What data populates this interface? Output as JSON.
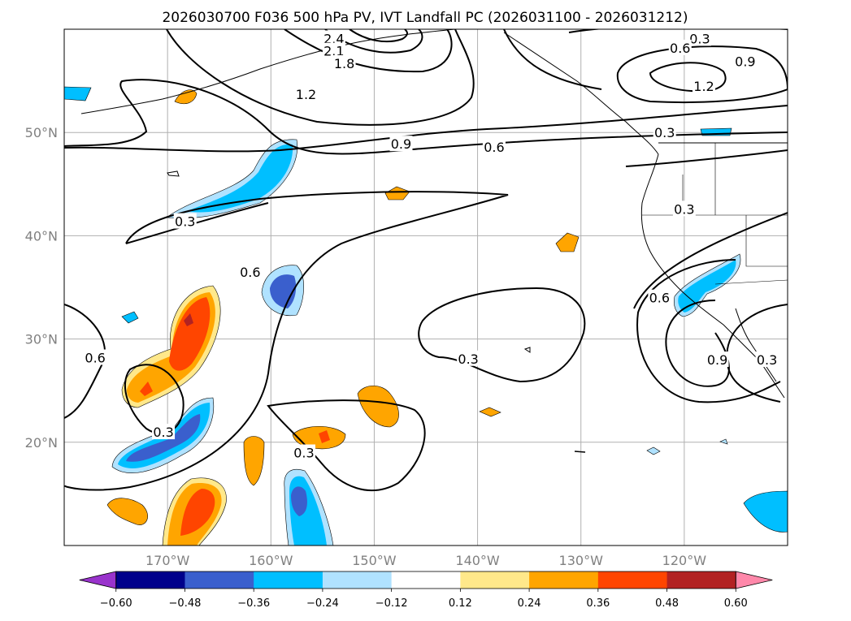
{
  "chart_data": {
    "type": "heatmap",
    "title": "2026030700 F036 500 hPa PV, IVT Landfall PC (2026031100 - 2026031212)",
    "map": {
      "lon_range": [
        -180,
        -110
      ],
      "lat_range": [
        10,
        60
      ],
      "lon_ticks": [
        {
          "value": -170,
          "label": "170°W"
        },
        {
          "value": -160,
          "label": "160°W"
        },
        {
          "value": -150,
          "label": "150°W"
        },
        {
          "value": -140,
          "label": "140°W"
        },
        {
          "value": -130,
          "label": "130°W"
        },
        {
          "value": -120,
          "label": "120°W"
        }
      ],
      "lat_ticks": [
        {
          "value": 20,
          "label": "20°N"
        },
        {
          "value": 30,
          "label": "30°N"
        },
        {
          "value": 40,
          "label": "40°N"
        },
        {
          "value": 50,
          "label": "50°N"
        }
      ],
      "grid": true
    },
    "colorbar": {
      "levels": [
        -0.6,
        -0.48,
        -0.36,
        -0.24,
        -0.12,
        0.12,
        0.24,
        0.36,
        0.48,
        0.6
      ],
      "tick_labels": [
        "−0.60",
        "−0.48",
        "−0.36",
        "−0.24",
        "−0.12",
        "0.12",
        "0.24",
        "0.36",
        "0.48",
        "0.60"
      ],
      "colors": [
        "#9933cc",
        "#00008b",
        "#3a5fcd",
        "#00bfff",
        "#b0e2ff",
        "#ffffff",
        "#ffe88a",
        "#ffa500",
        "#ff4500",
        "#b22222",
        "#ff88aa"
      ],
      "extend": "both",
      "orientation": "horizontal"
    },
    "contour_labels": [
      {
        "text": "2.4",
        "lon": -153.9,
        "lat": 59.1
      },
      {
        "text": "2.1",
        "lon": -153.9,
        "lat": 57.9
      },
      {
        "text": "1.8",
        "lon": -152.9,
        "lat": 56.7
      },
      {
        "text": "1.2",
        "lon": -156.6,
        "lat": 53.7
      },
      {
        "text": "0.9",
        "lon": -147.4,
        "lat": 48.9
      },
      {
        "text": "0.6",
        "lon": -138.4,
        "lat": 48.6
      },
      {
        "text": "0.3",
        "lon": -118.5,
        "lat": 59.1
      },
      {
        "text": "0.6",
        "lon": -120.4,
        "lat": 58.2
      },
      {
        "text": "0.9",
        "lon": -114.1,
        "lat": 56.9
      },
      {
        "text": "1.2",
        "lon": -118.1,
        "lat": 54.5
      },
      {
        "text": "0.3",
        "lon": -121.9,
        "lat": 50.0
      },
      {
        "text": "0.3",
        "lon": -120.0,
        "lat": 42.6
      },
      {
        "text": "0.3",
        "lon": -168.3,
        "lat": 41.4
      },
      {
        "text": "0.6",
        "lon": -162.0,
        "lat": 36.5
      },
      {
        "text": "0.6",
        "lon": -177.0,
        "lat": 28.2
      },
      {
        "text": "0.3",
        "lon": -140.9,
        "lat": 28.1
      },
      {
        "text": "0.6",
        "lon": -122.4,
        "lat": 34.0
      },
      {
        "text": "0.9",
        "lon": -116.8,
        "lat": 28.0
      },
      {
        "text": "0.3",
        "lon": -112.0,
        "lat": 28.0
      },
      {
        "text": "0.3",
        "lon": -170.4,
        "lat": 21.0
      },
      {
        "text": "0.3",
        "lon": -156.8,
        "lat": 19.0
      }
    ]
  }
}
